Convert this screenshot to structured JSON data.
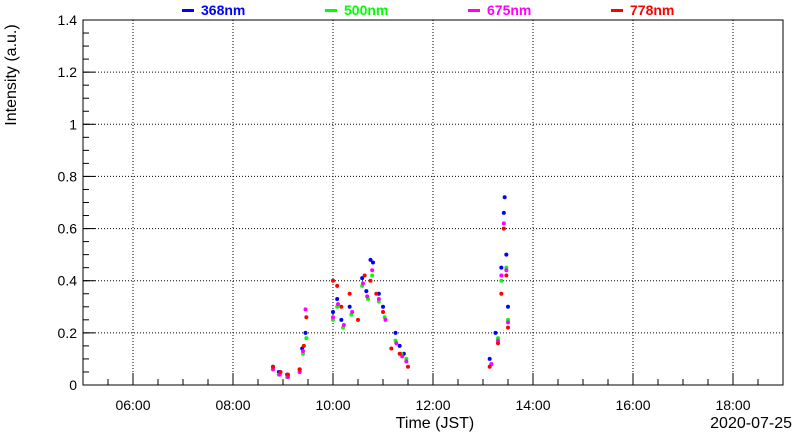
{
  "chart_data": {
    "type": "scatter",
    "title": "",
    "xlabel": "Time (JST)",
    "ylabel": "Intensity (a.u.)",
    "date_label": "2020-07-25",
    "xlim": [
      "05:00",
      "19:00"
    ],
    "ylim": [
      0,
      1.4
    ],
    "x_ticks": [
      "06:00",
      "08:00",
      "10:00",
      "12:00",
      "14:00",
      "16:00",
      "18:00"
    ],
    "y_ticks": [
      "0",
      "0.2",
      "0.4",
      "0.6",
      "0.8",
      "1",
      "1.2",
      "1.4"
    ],
    "grid": true,
    "legend_position": "top",
    "series": [
      {
        "name": "368nm",
        "color": "#0000ff",
        "points": [
          [
            "08:48",
            0.07
          ],
          [
            "08:55",
            0.05
          ],
          [
            "09:05",
            0.04
          ],
          [
            "09:20",
            0.06
          ],
          [
            "09:23",
            0.14
          ],
          [
            "09:27",
            0.2
          ],
          [
            "10:00",
            0.28
          ],
          [
            "10:05",
            0.33
          ],
          [
            "10:10",
            0.25
          ],
          [
            "10:20",
            0.3
          ],
          [
            "10:35",
            0.41
          ],
          [
            "10:40",
            0.36
          ],
          [
            "10:45",
            0.48
          ],
          [
            "10:48",
            0.47
          ],
          [
            "10:55",
            0.35
          ],
          [
            "11:00",
            0.3
          ],
          [
            "11:15",
            0.2
          ],
          [
            "11:20",
            0.15
          ],
          [
            "11:25",
            0.12
          ],
          [
            "13:08",
            0.1
          ],
          [
            "13:15",
            0.2
          ],
          [
            "13:22",
            0.45
          ],
          [
            "13:25",
            0.66
          ],
          [
            "13:26",
            0.72
          ],
          [
            "13:28",
            0.5
          ],
          [
            "13:30",
            0.3
          ]
        ]
      },
      {
        "name": "500nm",
        "color": "#00ff00",
        "points": [
          [
            "08:48",
            0.06
          ],
          [
            "08:55",
            0.04
          ],
          [
            "09:05",
            0.03
          ],
          [
            "09:20",
            0.05
          ],
          [
            "09:24",
            0.12
          ],
          [
            "09:28",
            0.18
          ],
          [
            "10:00",
            0.25
          ],
          [
            "10:05",
            0.3
          ],
          [
            "10:12",
            0.22
          ],
          [
            "10:22",
            0.27
          ],
          [
            "10:35",
            0.38
          ],
          [
            "10:42",
            0.33
          ],
          [
            "10:47",
            0.42
          ],
          [
            "10:55",
            0.32
          ],
          [
            "11:02",
            0.26
          ],
          [
            "11:15",
            0.17
          ],
          [
            "11:22",
            0.12
          ],
          [
            "11:28",
            0.1
          ],
          [
            "13:10",
            0.08
          ],
          [
            "13:18",
            0.18
          ],
          [
            "13:22",
            0.4
          ],
          [
            "13:25",
            0.6
          ],
          [
            "13:28",
            0.45
          ],
          [
            "13:30",
            0.25
          ]
        ]
      },
      {
        "name": "675nm",
        "color": "#ff00ff",
        "points": [
          [
            "08:48",
            0.06
          ],
          [
            "08:56",
            0.04
          ],
          [
            "09:06",
            0.03
          ],
          [
            "09:20",
            0.05
          ],
          [
            "09:24",
            0.13
          ],
          [
            "09:27",
            0.29
          ],
          [
            "10:00",
            0.26
          ],
          [
            "10:06",
            0.31
          ],
          [
            "10:13",
            0.23
          ],
          [
            "10:23",
            0.28
          ],
          [
            "10:36",
            0.39
          ],
          [
            "10:41",
            0.34
          ],
          [
            "10:47",
            0.44
          ],
          [
            "10:55",
            0.33
          ],
          [
            "11:03",
            0.25
          ],
          [
            "11:16",
            0.16
          ],
          [
            "11:23",
            0.11
          ],
          [
            "11:28",
            0.09
          ],
          [
            "13:10",
            0.08
          ],
          [
            "13:18",
            0.17
          ],
          [
            "13:22",
            0.42
          ],
          [
            "13:25",
            0.62
          ],
          [
            "13:28",
            0.44
          ],
          [
            "13:30",
            0.24
          ]
        ]
      },
      {
        "name": "778nm",
        "color": "#ff0000",
        "points": [
          [
            "08:48",
            0.07
          ],
          [
            "08:57",
            0.05
          ],
          [
            "09:06",
            0.04
          ],
          [
            "09:20",
            0.06
          ],
          [
            "09:25",
            0.15
          ],
          [
            "09:28",
            0.26
          ],
          [
            "10:00",
            0.4
          ],
          [
            "10:05",
            0.38
          ],
          [
            "10:10",
            0.3
          ],
          [
            "10:20",
            0.35
          ],
          [
            "10:30",
            0.25
          ],
          [
            "10:38",
            0.42
          ],
          [
            "10:45",
            0.4
          ],
          [
            "10:52",
            0.35
          ],
          [
            "11:00",
            0.28
          ],
          [
            "11:10",
            0.14
          ],
          [
            "11:20",
            0.12
          ],
          [
            "11:30",
            0.07
          ],
          [
            "13:08",
            0.07
          ],
          [
            "13:18",
            0.16
          ],
          [
            "13:22",
            0.35
          ],
          [
            "13:25",
            0.6
          ],
          [
            "13:28",
            0.42
          ],
          [
            "13:30",
            0.22
          ]
        ]
      }
    ]
  }
}
